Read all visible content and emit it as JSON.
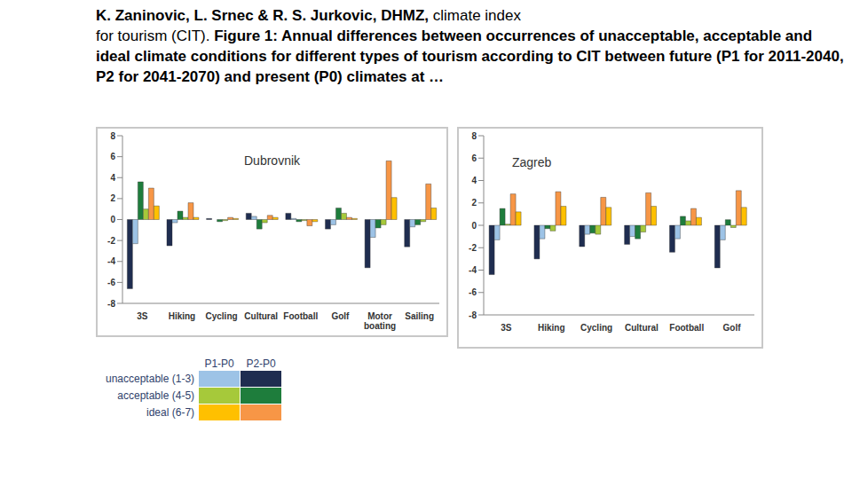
{
  "header": {
    "line1_bold": "K. Zaninovic, L. Srnec & R. S. Jurkovic, DHMZ,",
    "line1_plain": "climate index",
    "line2_plain": "for tourism (CIT).",
    "line2_bold": "Figure 1: Annual differences between occurrences of unacceptable, acceptable and ideal climate conditions for different types of tourism according to CIT between future (P1 for 2011-2040, P2 for 2041-2070) and present (P0) climates at …"
  },
  "legend_table": {
    "columns": [
      "P1-P0",
      "P2-P0"
    ],
    "rows": [
      "unacceptable (1-3)",
      "acceptable (4-5)",
      "ideal (6-7)"
    ],
    "colors": [
      [
        "#9dc3e6",
        "#1f2d50"
      ],
      [
        "#a6c93a",
        "#1e7d3c"
      ],
      [
        "#ffc000",
        "#f79646"
      ]
    ]
  },
  "chart_data": [
    {
      "type": "bar",
      "title": "Dubrovnik",
      "categories": [
        "3S",
        "Hiking",
        "Cycling",
        "Cultural",
        "Football",
        "Golf",
        "Motor boating",
        "Sailing"
      ],
      "ylim": [
        -8,
        8
      ],
      "yticks": [
        -8,
        -6,
        -4,
        -2,
        0,
        2,
        4,
        6,
        8
      ],
      "grid": false,
      "series": [
        {
          "color": "#1f2d50",
          "values": [
            -6.6,
            -2.5,
            0.1,
            0.6,
            0.6,
            -0.9,
            -4.6,
            -2.6
          ]
        },
        {
          "color": "#9dc3e6",
          "values": [
            -2.3,
            -0.3,
            0.0,
            0.3,
            0.1,
            -0.5,
            -1.7,
            -0.7
          ]
        },
        {
          "color": "#1e7d3c",
          "values": [
            3.6,
            0.8,
            -0.2,
            -0.9,
            -0.2,
            1.1,
            -0.8,
            -0.5
          ]
        },
        {
          "color": "#a6c93a",
          "values": [
            1.0,
            0.2,
            -0.1,
            -0.3,
            -0.1,
            0.6,
            -0.5,
            -0.2
          ]
        },
        {
          "color": "#f79646",
          "values": [
            3.0,
            1.6,
            0.2,
            0.4,
            -0.6,
            0.2,
            5.6,
            3.4
          ]
        },
        {
          "color": "#ffc000",
          "values": [
            1.3,
            0.2,
            0.1,
            0.2,
            -0.2,
            0.1,
            2.1,
            1.1
          ]
        }
      ]
    },
    {
      "type": "bar",
      "title": "Zagreb",
      "categories": [
        "3S",
        "Hiking",
        "Cycling",
        "Cultural",
        "Football",
        "Golf"
      ],
      "ylim": [
        -8,
        8
      ],
      "yticks": [
        -8,
        -6,
        -4,
        -2,
        0,
        2,
        4,
        6,
        8
      ],
      "grid": false,
      "series": [
        {
          "color": "#1f2d50",
          "values": [
            -4.4,
            -3.0,
            -1.9,
            -1.7,
            -2.4,
            -3.8
          ]
        },
        {
          "color": "#9dc3e6",
          "values": [
            -1.3,
            -1.2,
            -0.8,
            -1.0,
            -1.2,
            -1.3
          ]
        },
        {
          "color": "#1e7d3c",
          "values": [
            1.5,
            -0.3,
            -0.7,
            -1.2,
            0.8,
            0.5
          ]
        },
        {
          "color": "#a6c93a",
          "values": [
            0.1,
            -0.5,
            -0.8,
            -0.6,
            0.4,
            -0.2
          ]
        },
        {
          "color": "#f79646",
          "values": [
            2.8,
            3.0,
            2.5,
            2.9,
            1.5,
            3.1
          ]
        },
        {
          "color": "#ffc000",
          "values": [
            1.2,
            1.7,
            1.6,
            1.7,
            0.7,
            1.6
          ]
        }
      ]
    }
  ]
}
